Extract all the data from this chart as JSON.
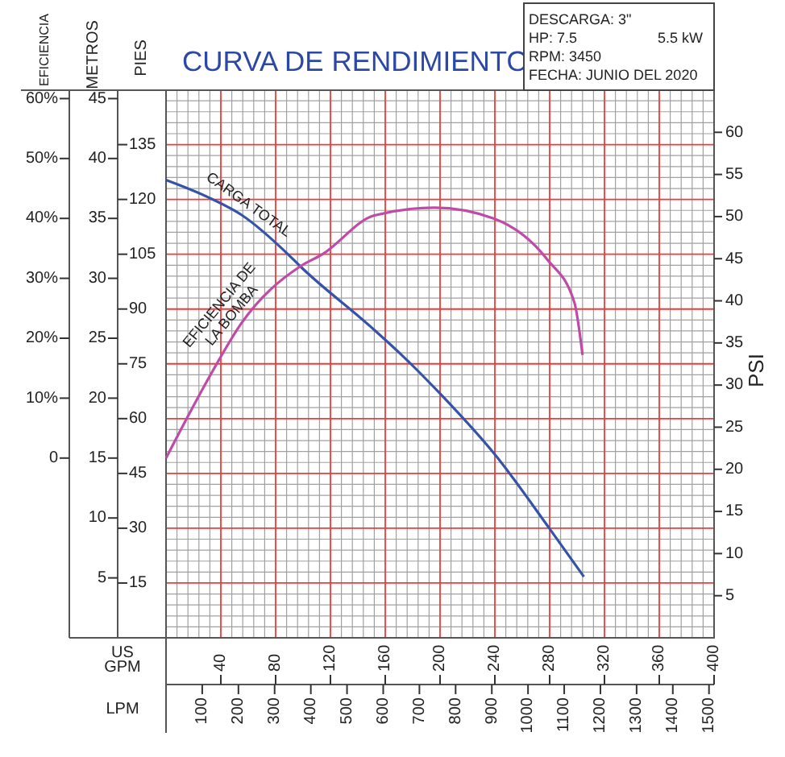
{
  "chart_data": [
    {
      "type": "line",
      "title": "CURVA DE RENDIMIENTO",
      "annotations": [
        "DESCARGA: 3\"",
        "HP: 7.5",
        "5.5 kW",
        "RPM: 3450",
        "FECHA: JUNIO DEL 2020"
      ],
      "xlabel": "US GPM",
      "x2label": "LPM",
      "ylabel": "METROS",
      "y2label": "PSI",
      "y3label": "PIES",
      "xlim": [
        0,
        400
      ],
      "xticks": [
        40,
        80,
        120,
        160,
        200,
        240,
        280,
        320,
        360,
        400
      ],
      "x2lim": [
        0,
        1514
      ],
      "x2ticks": [
        100,
        200,
        300,
        400,
        500,
        600,
        700,
        800,
        900,
        1000,
        1100,
        1200,
        1300,
        1400,
        1500
      ],
      "ylim": [
        0,
        45.7
      ],
      "yticks": [
        5,
        10,
        15,
        20,
        25,
        30,
        35,
        40,
        45
      ],
      "y2lim": [
        0,
        65
      ],
      "y2ticks": [
        5,
        10,
        15,
        20,
        25,
        30,
        35,
        40,
        45,
        50,
        55,
        60
      ],
      "y3lim": [
        0,
        149.9
      ],
      "y3ticks": [
        15,
        30,
        45,
        60,
        75,
        90,
        105,
        120,
        135
      ],
      "grid": true,
      "legend": false,
      "marker": "none",
      "line_style": "solid",
      "series": [
        {
          "name": "CARGA TOTAL",
          "color": "#3553a8",
          "x": [
            0,
            30,
            55,
            90,
            98,
            149,
            172,
            199,
            240,
            280,
            305
          ],
          "values": [
            38.2,
            36.8,
            35.3,
            31.9,
            31.0,
            26.0,
            23.6,
            20.5,
            15.3,
            9.1,
            5.1
          ]
        }
      ]
    },
    {
      "type": "line",
      "ylabel": "EFICIENCIA",
      "xlim": [
        0,
        400
      ],
      "ylim": [
        -30,
        61.4
      ],
      "yticks": [
        0,
        {
          "value": 10,
          "label": "10%"
        },
        {
          "value": 20,
          "label": "20%"
        },
        {
          "value": 30,
          "label": "30%"
        },
        {
          "value": 40,
          "label": "40%"
        },
        {
          "value": 50,
          "label": "50%"
        },
        {
          "value": 60,
          "label": "60%"
        }
      ],
      "tick_labels": "y",
      "marker": "none",
      "line_style": "solid",
      "series": [
        {
          "name": "EFICIENCIA DE LA BOMBA",
          "color": "#c04aa8",
          "x": [
            0,
            32,
            55,
            98,
            114,
            152,
            196,
            239,
            278,
            298,
            304
          ],
          "values": [
            0,
            13.7,
            22.5,
            32,
            34,
            40.5,
            41.8,
            40,
            33.2,
            26,
            17.2
          ]
        }
      ]
    }
  ]
}
